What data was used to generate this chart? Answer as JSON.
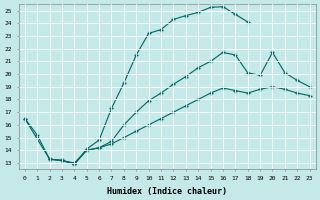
{
  "bg_color": "#c5e8e8",
  "line_color": "#006666",
  "grid_color": "#ffffff",
  "xlabel": "Humidex (Indice chaleur)",
  "xlim": [
    -0.5,
    23.5
  ],
  "ylim": [
    12.5,
    25.5
  ],
  "curve1_x": [
    0,
    1,
    2,
    3,
    4,
    5,
    6,
    7,
    8,
    9,
    10,
    11,
    12,
    13,
    14,
    15,
    16,
    17,
    18
  ],
  "curve1_y": [
    16.5,
    15.2,
    13.3,
    13.2,
    12.9,
    14.1,
    14.8,
    17.3,
    19.3,
    21.5,
    23.2,
    23.5,
    24.3,
    24.6,
    24.85,
    25.25,
    25.3,
    24.7,
    24.1
  ],
  "curve2_x": [
    2,
    3,
    4,
    5,
    6,
    7,
    8,
    9,
    10,
    11,
    12,
    13,
    14,
    15,
    16,
    17,
    18,
    19,
    20,
    21,
    22,
    23
  ],
  "curve2_y": [
    13.3,
    13.2,
    12.9,
    14.0,
    14.2,
    14.7,
    16.0,
    17.0,
    17.9,
    18.5,
    19.2,
    19.8,
    20.5,
    21.0,
    21.7,
    21.5,
    20.1,
    19.9,
    21.7,
    20.1,
    19.5,
    19.0
  ],
  "curve3_x": [
    0,
    2,
    3,
    4,
    5,
    6,
    7,
    8,
    9,
    10,
    11,
    12,
    13,
    14,
    15,
    16,
    17,
    18,
    19,
    20,
    21,
    22,
    23
  ],
  "curve3_y": [
    16.5,
    13.3,
    13.2,
    13.0,
    14.0,
    14.2,
    14.5,
    15.0,
    15.5,
    16.0,
    16.5,
    17.0,
    17.5,
    18.0,
    18.5,
    18.9,
    18.7,
    18.5,
    18.8,
    19.0,
    18.8,
    18.5,
    18.3
  ]
}
